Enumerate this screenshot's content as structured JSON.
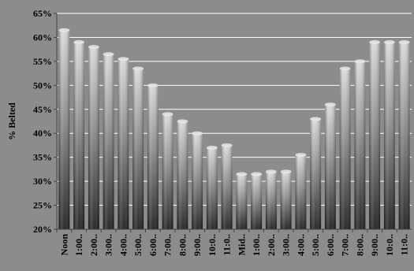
{
  "chart_data": {
    "type": "bar",
    "title": "",
    "xlabel": "",
    "ylabel": "% Belted",
    "ylim": [
      20,
      65
    ],
    "ytick_labels": [
      "20%",
      "25%",
      "30%",
      "35%",
      "40%",
      "45%",
      "50%",
      "55%",
      "60%",
      "65%"
    ],
    "grid": true,
    "legend": "none",
    "bar_colors": {
      "light": "#d8d8d8",
      "mid": "#8a8a8a",
      "dark": "#1e1e1e"
    },
    "categories": [
      "Noon",
      "1:00..",
      "2:00..",
      "3:00..",
      "4:00..",
      "5:00..",
      "6:00..",
      "7:00..",
      "8:00..",
      "9:00..",
      "10:0..",
      "11:0..",
      "Mid..",
      "1:00..",
      "2:00..",
      "3:00..",
      "4:00..",
      "5:00..",
      "6:00..",
      "7:00..",
      "8:00..",
      "9:00..",
      "10:0..",
      "11:0.."
    ],
    "series": [
      {
        "values": [
          61.5,
          59.0,
          58.0,
          56.5,
          55.5,
          53.5,
          50.0,
          44.0,
          42.5,
          40.0,
          37.0,
          37.5,
          31.5,
          31.5,
          32.0,
          32.0,
          35.5,
          43.0,
          46.0,
          53.5,
          55.0,
          59.0,
          59.0,
          59.0
        ]
      }
    ]
  }
}
